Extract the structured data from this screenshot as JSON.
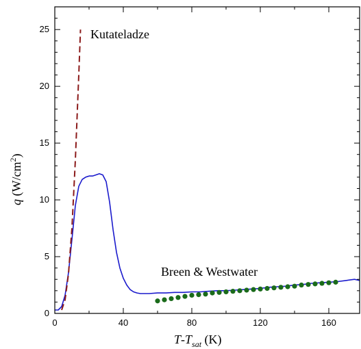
{
  "chart_data": {
    "type": "line",
    "xlim": [
      0,
      178
    ],
    "ylim": [
      0,
      27
    ],
    "x_ticks": [
      0,
      40,
      80,
      120,
      160
    ],
    "y_ticks": [
      0,
      5,
      10,
      15,
      20,
      25
    ],
    "xlabel_parts": {
      "a": "T",
      "b": "-",
      "c": "T",
      "sub": "sat",
      "unit": " (K)"
    },
    "ylabel_parts": {
      "var": "q",
      "unit": " (W/cm",
      "sup": "2",
      "close": ")"
    },
    "grid": false,
    "annotations": [
      {
        "text": "Kutateladze"
      },
      {
        "text": "Breen & Westwater"
      }
    ],
    "series": [
      {
        "style": "solid",
        "color": "#1a1acc",
        "x": [
          0,
          2,
          4,
          6,
          8,
          10,
          12,
          14,
          16,
          18,
          20,
          22,
          24,
          26,
          28,
          30,
          32,
          34,
          36,
          38,
          40,
          42,
          44,
          46,
          48,
          50,
          55,
          60,
          65,
          70,
          75,
          80,
          85,
          90,
          95,
          100,
          105,
          110,
          115,
          120,
          125,
          130,
          135,
          140,
          145,
          150,
          155,
          160,
          165,
          170,
          175,
          178
        ],
        "y": [
          0.3,
          0.3,
          0.6,
          1.6,
          3.6,
          6.5,
          9.5,
          11.2,
          11.8,
          12.0,
          12.1,
          12.1,
          12.2,
          12.3,
          12.2,
          11.6,
          9.8,
          7.4,
          5.4,
          4.0,
          3.1,
          2.5,
          2.1,
          1.9,
          1.8,
          1.75,
          1.75,
          1.8,
          1.8,
          1.85,
          1.85,
          1.9,
          1.9,
          1.95,
          2.0,
          2.0,
          2.05,
          2.1,
          2.15,
          2.2,
          2.3,
          2.35,
          2.4,
          2.5,
          2.55,
          2.65,
          2.7,
          2.75,
          2.8,
          2.9,
          3.0,
          2.9
        ]
      },
      {
        "style": "dashed",
        "color": "#8b1a1a",
        "x": [
          4,
          6,
          8,
          10,
          12,
          14,
          15
        ],
        "y": [
          0.3,
          1.2,
          3.5,
          7.5,
          13.5,
          21.0,
          25.0
        ]
      },
      {
        "style": "dots",
        "color": "#1a6b1a",
        "x": [
          60,
          64,
          68,
          72,
          76,
          80,
          84,
          88,
          92,
          96,
          100,
          104,
          108,
          112,
          116,
          120,
          124,
          128,
          132,
          136,
          140,
          144,
          148,
          152,
          156,
          160,
          164
        ],
        "y": [
          1.1,
          1.2,
          1.3,
          1.4,
          1.5,
          1.6,
          1.65,
          1.7,
          1.8,
          1.85,
          1.9,
          1.95,
          2.0,
          2.05,
          2.1,
          2.15,
          2.2,
          2.25,
          2.3,
          2.35,
          2.4,
          2.5,
          2.55,
          2.6,
          2.65,
          2.7,
          2.75
        ]
      }
    ]
  }
}
